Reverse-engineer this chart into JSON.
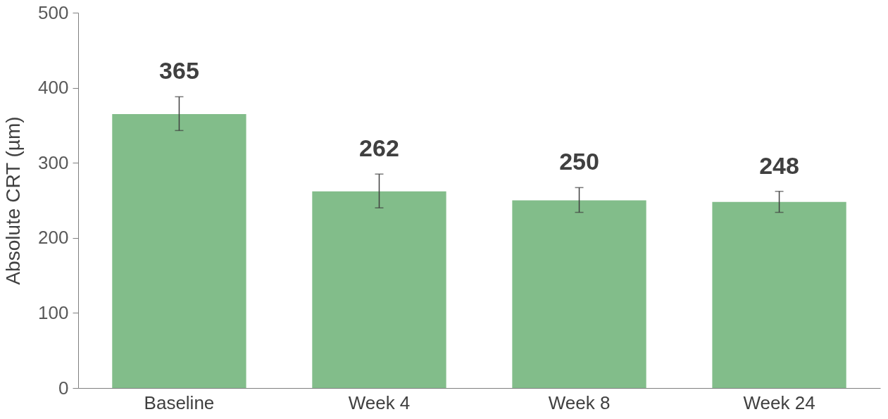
{
  "chart_data": {
    "type": "bar",
    "ylabel": "Absolute CRT (µm)",
    "categories": [
      "Baseline",
      "Week 4",
      "Week 8",
      "Week 24"
    ],
    "values": [
      365,
      262,
      250,
      248
    ],
    "errors": [
      [
        343,
        388
      ],
      [
        240,
        285
      ],
      [
        234,
        267
      ],
      [
        234,
        262
      ]
    ],
    "color": "#82bd8a",
    "ylim": [
      0,
      500
    ],
    "yticks": [
      0,
      100,
      200,
      300,
      400,
      500
    ],
    "grid": false,
    "data_labels": true
  }
}
